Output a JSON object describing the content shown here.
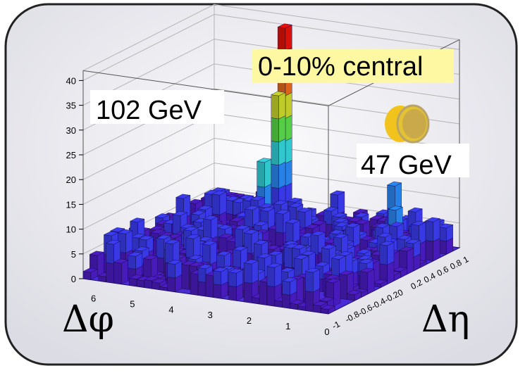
{
  "chart_data": {
    "type": "lego3d",
    "labels": {
      "phi_axis": "Δφ",
      "eta_axis": "Δη",
      "centrality": "0-10% central",
      "jet1": "102 GeV",
      "jet2": "47 GeV"
    },
    "z_ticks": [
      "0",
      "5",
      "10",
      "15",
      "20",
      "25",
      "30",
      "35",
      "40"
    ],
    "phi_ticks": [
      "0",
      "1",
      "2",
      "3",
      "4",
      "5",
      "6"
    ],
    "eta_ticks": [
      "-1",
      "-0.8",
      "-0.6",
      "-0.4",
      "-0.2",
      "0",
      "0.2",
      "0.4",
      "0.6",
      "0.8",
      "1"
    ],
    "zlim": [
      0,
      42
    ],
    "phi_range": [
      0,
      6.3
    ],
    "eta_range": [
      -1,
      1
    ],
    "peaks": [
      {
        "phi": 4.2,
        "eta": 0.85,
        "value": 41
      },
      {
        "phi": 4.2,
        "eta": 0.75,
        "value": 28
      },
      {
        "phi": 4.5,
        "eta": 0.65,
        "value": 15
      },
      {
        "phi": 1.0,
        "eta": 0.65,
        "value": 14
      },
      {
        "phi": 0.95,
        "eta": 0.55,
        "value": 10
      }
    ],
    "background_level": [
      0,
      8
    ],
    "palette": [
      "#4b1cc4",
      "#3b3cf0",
      "#2a88f2",
      "#32d2d8",
      "#5bd84a",
      "#c8d62a",
      "#e86a1a",
      "#e3120b"
    ]
  },
  "colors": {
    "card_fill": "#f1f1f5",
    "card_border": "#222222",
    "grid": "#b5b5b5",
    "central_box": "#fff8a3"
  },
  "icons": {
    "jet_disk": "gold-disk-icon"
  }
}
